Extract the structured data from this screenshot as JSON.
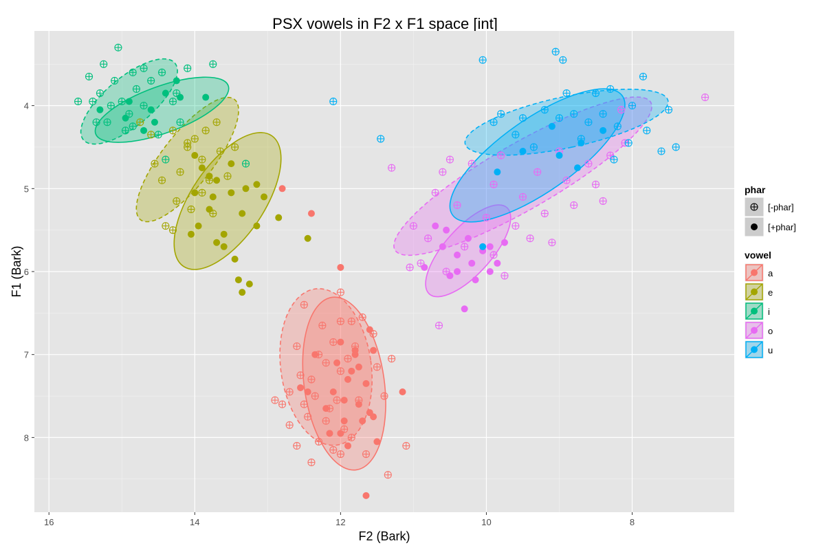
{
  "chart_data": {
    "type": "scatter",
    "title": "PSX vowels in F2 x F1 space [int]",
    "xlabel": "F2 (Bark)",
    "ylabel": "F1 (Bark)",
    "xlim": [
      16.2,
      6.6
    ],
    "ylim": [
      3.1,
      8.9
    ],
    "x_reversed": true,
    "y_reversed": true,
    "x_ticks": [
      "16",
      "14",
      "12",
      "10",
      "8"
    ],
    "y_ticks": [
      "4",
      "5",
      "6",
      "7",
      "8"
    ],
    "grid": true,
    "legend_position": "right",
    "legends": [
      {
        "title": "phar",
        "entries": [
          {
            "label": "[-phar]",
            "shape": "crossed-circle"
          },
          {
            "label": "[+phar]",
            "shape": "filled-circle"
          }
        ]
      },
      {
        "title": "vowel",
        "entries": [
          {
            "label": "a",
            "color": "#F8766D"
          },
          {
            "label": "e",
            "color": "#A3A500"
          },
          {
            "label": "i",
            "color": "#00BF7D"
          },
          {
            "label": "o",
            "color": "#E76BF3"
          },
          {
            "label": "u",
            "color": "#00B0F6"
          }
        ]
      }
    ],
    "ellipses": [
      {
        "vowel": "a",
        "phar": "[-phar]",
        "cx": 12.2,
        "cy": 7.15,
        "rx": 0.62,
        "ry": 0.95,
        "angle": -8
      },
      {
        "vowel": "a",
        "phar": "[+phar]",
        "cx": 11.95,
        "cy": 7.35,
        "rx": 0.55,
        "ry": 1.05,
        "angle": -8
      },
      {
        "vowel": "e",
        "phar": "[-phar]",
        "cx": 14.1,
        "cy": 4.65,
        "rx": 0.35,
        "ry": 0.92,
        "angle": 38
      },
      {
        "vowel": "e",
        "phar": "[+phar]",
        "cx": 13.55,
        "cy": 5.15,
        "rx": 0.5,
        "ry": 0.95,
        "angle": 34
      },
      {
        "vowel": "i",
        "phar": "[-phar]",
        "cx": 14.9,
        "cy": 3.95,
        "rx": 0.33,
        "ry": 0.72,
        "angle": 50
      },
      {
        "vowel": "i",
        "phar": "[+phar]",
        "cx": 14.45,
        "cy": 4.05,
        "rx": 0.32,
        "ry": 0.85,
        "angle": 70
      },
      {
        "vowel": "o",
        "phar": "[-phar]",
        "cx": 9.5,
        "cy": 4.85,
        "rx": 0.45,
        "ry": 1.78,
        "angle": 60
      },
      {
        "vowel": "o",
        "phar": "[+phar]",
        "cx": 10.25,
        "cy": 5.75,
        "rx": 0.32,
        "ry": 0.7,
        "angle": 42
      },
      {
        "vowel": "u",
        "phar": "[-phar]",
        "cx": 8.9,
        "cy": 4.2,
        "rx": 0.35,
        "ry": 1.25,
        "angle": 78
      },
      {
        "vowel": "u",
        "phar": "[+phar]",
        "cx": 9.3,
        "cy": 4.6,
        "rx": 0.5,
        "ry": 1.25,
        "angle": 55
      }
    ],
    "series": [
      {
        "vowel": "a",
        "phar": "[-phar]",
        "points": [
          [
            12.1,
            6.85
          ],
          [
            12.3,
            7.0
          ],
          [
            12.4,
            7.3
          ],
          [
            12.5,
            7.6
          ],
          [
            12.2,
            7.8
          ],
          [
            12.0,
            6.6
          ],
          [
            11.8,
            6.9
          ],
          [
            12.6,
            6.9
          ],
          [
            12.0,
            7.2
          ],
          [
            12.35,
            7.5
          ],
          [
            12.15,
            7.65
          ],
          [
            12.45,
            7.75
          ],
          [
            12.3,
            8.05
          ],
          [
            12.1,
            8.15
          ],
          [
            11.9,
            7.05
          ],
          [
            12.55,
            7.25
          ],
          [
            12.7,
            7.45
          ],
          [
            12.25,
            6.65
          ],
          [
            12.05,
            7.55
          ],
          [
            11.75,
            7.55
          ],
          [
            11.85,
            8.0
          ],
          [
            12.8,
            7.6
          ],
          [
            11.5,
            7.15
          ],
          [
            11.4,
            7.5
          ],
          [
            12.6,
            8.1
          ],
          [
            12.0,
            8.2
          ],
          [
            11.7,
            6.55
          ],
          [
            12.5,
            6.4
          ],
          [
            11.65,
            8.2
          ],
          [
            11.35,
            8.45
          ],
          [
            12.4,
            8.3
          ],
          [
            12.0,
            6.25
          ],
          [
            11.3,
            7.05
          ],
          [
            11.85,
            6.6
          ],
          [
            11.1,
            8.1
          ],
          [
            12.9,
            7.55
          ],
          [
            12.2,
            7.1
          ],
          [
            11.95,
            7.9
          ],
          [
            12.7,
            7.85
          ],
          [
            11.55,
            6.75
          ]
        ]
      },
      {
        "vowel": "a",
        "phar": "[+phar]",
        "points": [
          [
            12.0,
            6.85
          ],
          [
            11.8,
            7.0
          ],
          [
            11.9,
            7.3
          ],
          [
            12.1,
            7.45
          ],
          [
            11.75,
            7.6
          ],
          [
            11.6,
            7.7
          ],
          [
            11.95,
            7.8
          ],
          [
            12.05,
            7.1
          ],
          [
            11.65,
            7.35
          ],
          [
            11.85,
            7.2
          ],
          [
            12.2,
            7.65
          ],
          [
            12.45,
            7.45
          ],
          [
            11.7,
            7.8
          ],
          [
            11.55,
            6.95
          ],
          [
            11.9,
            8.1
          ],
          [
            11.5,
            8.05
          ],
          [
            12.15,
            7.95
          ],
          [
            11.6,
            6.7
          ],
          [
            11.15,
            7.45
          ],
          [
            11.8,
            6.95
          ],
          [
            12.55,
            7.4
          ],
          [
            11.95,
            7.55
          ],
          [
            11.65,
            8.7
          ],
          [
            12.0,
            7.95
          ],
          [
            12.35,
            7.0
          ],
          [
            11.75,
            7.15
          ],
          [
            11.55,
            7.75
          ],
          [
            12.8,
            5.0
          ],
          [
            12.4,
            5.3
          ],
          [
            12.0,
            5.95
          ]
        ]
      },
      {
        "vowel": "e",
        "phar": "[-phar]",
        "points": [
          [
            14.3,
            4.3
          ],
          [
            14.1,
            4.5
          ],
          [
            14.0,
            4.4
          ],
          [
            13.9,
            4.65
          ],
          [
            13.8,
            4.9
          ],
          [
            13.65,
            4.55
          ],
          [
            14.2,
            4.8
          ],
          [
            14.45,
            4.9
          ],
          [
            13.55,
            4.85
          ],
          [
            13.9,
            5.05
          ],
          [
            14.25,
            5.15
          ],
          [
            14.05,
            5.25
          ],
          [
            13.75,
            5.3
          ],
          [
            14.4,
            5.45
          ],
          [
            14.6,
            4.35
          ],
          [
            14.75,
            4.2
          ],
          [
            13.7,
            4.2
          ],
          [
            13.45,
            4.5
          ],
          [
            14.3,
            5.5
          ],
          [
            13.85,
            4.3
          ],
          [
            14.55,
            4.7
          ],
          [
            14.1,
            4.45
          ]
        ]
      },
      {
        "vowel": "e",
        "phar": "[+phar]",
        "points": [
          [
            13.9,
            4.75
          ],
          [
            13.7,
            4.9
          ],
          [
            13.5,
            5.05
          ],
          [
            13.8,
            5.25
          ],
          [
            13.95,
            5.45
          ],
          [
            13.6,
            5.55
          ],
          [
            13.35,
            5.3
          ],
          [
            14.0,
            4.6
          ],
          [
            13.3,
            5.0
          ],
          [
            13.7,
            5.65
          ],
          [
            13.45,
            5.85
          ],
          [
            13.15,
            5.45
          ],
          [
            13.05,
            5.1
          ],
          [
            13.6,
            5.7
          ],
          [
            13.25,
            6.15
          ],
          [
            13.4,
            6.1
          ],
          [
            12.85,
            5.35
          ],
          [
            12.45,
            5.6
          ],
          [
            13.75,
            5.1
          ],
          [
            14.0,
            5.05
          ],
          [
            13.15,
            4.95
          ],
          [
            13.5,
            4.7
          ],
          [
            13.8,
            4.85
          ],
          [
            13.35,
            6.25
          ],
          [
            14.05,
            5.55
          ]
        ]
      },
      {
        "vowel": "i",
        "phar": "[-phar]",
        "points": [
          [
            15.3,
            3.85
          ],
          [
            15.1,
            3.7
          ],
          [
            15.0,
            3.95
          ],
          [
            14.9,
            4.1
          ],
          [
            14.8,
            3.8
          ],
          [
            15.2,
            4.2
          ],
          [
            14.7,
            4.0
          ],
          [
            14.6,
            3.7
          ],
          [
            15.4,
            3.95
          ],
          [
            14.85,
            3.6
          ],
          [
            15.05,
            3.3
          ],
          [
            14.5,
            4.35
          ],
          [
            14.3,
            3.95
          ],
          [
            14.1,
            3.55
          ],
          [
            15.6,
            3.95
          ],
          [
            15.45,
            3.65
          ],
          [
            14.95,
            4.3
          ],
          [
            14.4,
            4.65
          ],
          [
            13.75,
            3.5
          ],
          [
            13.3,
            4.7
          ],
          [
            14.7,
            3.55
          ],
          [
            15.25,
            3.5
          ],
          [
            14.2,
            4.2
          ],
          [
            15.15,
            4.0
          ],
          [
            14.45,
            3.6
          ],
          [
            14.85,
            4.25
          ],
          [
            15.35,
            4.2
          ],
          [
            14.25,
            3.85
          ]
        ]
      },
      {
        "vowel": "i",
        "phar": "[+phar]",
        "points": [
          [
            14.9,
            3.95
          ],
          [
            14.6,
            4.05
          ],
          [
            14.4,
            3.85
          ],
          [
            14.2,
            3.9
          ],
          [
            14.7,
            4.3
          ],
          [
            14.95,
            4.15
          ],
          [
            14.25,
            3.7
          ],
          [
            13.85,
            3.9
          ],
          [
            15.3,
            4.05
          ],
          [
            14.55,
            4.2
          ]
        ]
      },
      {
        "vowel": "o",
        "phar": "[-phar]",
        "points": [
          [
            10.6,
            4.8
          ],
          [
            10.2,
            4.7
          ],
          [
            9.9,
            4.95
          ],
          [
            9.5,
            5.1
          ],
          [
            9.3,
            4.8
          ],
          [
            9.0,
            4.55
          ],
          [
            8.6,
            4.7
          ],
          [
            8.5,
            4.95
          ],
          [
            8.3,
            4.6
          ],
          [
            10.4,
            5.2
          ],
          [
            10.0,
            5.35
          ],
          [
            9.6,
            5.45
          ],
          [
            9.2,
            5.3
          ],
          [
            8.8,
            5.2
          ],
          [
            8.4,
            5.15
          ],
          [
            8.1,
            4.45
          ],
          [
            10.8,
            5.6
          ],
          [
            10.3,
            5.7
          ],
          [
            9.9,
            5.8
          ],
          [
            9.4,
            5.6
          ],
          [
            10.9,
            5.9
          ],
          [
            11.05,
            5.95
          ],
          [
            10.55,
            6.0
          ],
          [
            9.75,
            6.05
          ],
          [
            9.1,
            5.65
          ],
          [
            10.7,
            5.05
          ],
          [
            11.0,
            5.45
          ],
          [
            7.0,
            3.9
          ],
          [
            8.15,
            4.05
          ],
          [
            10.5,
            4.65
          ],
          [
            9.8,
            4.6
          ],
          [
            8.9,
            4.9
          ],
          [
            10.65,
            6.65
          ],
          [
            11.3,
            4.75
          ]
        ]
      },
      {
        "vowel": "o",
        "phar": "[+phar]",
        "points": [
          [
            10.4,
            5.8
          ],
          [
            10.2,
            5.9
          ],
          [
            10.05,
            5.75
          ],
          [
            9.85,
            5.9
          ],
          [
            10.6,
            5.7
          ],
          [
            10.5,
            6.05
          ],
          [
            10.15,
            6.1
          ],
          [
            9.95,
            6.0
          ],
          [
            10.7,
            5.45
          ],
          [
            10.55,
            5.5
          ],
          [
            10.3,
            6.45
          ],
          [
            10.25,
            5.6
          ],
          [
            9.75,
            5.65
          ],
          [
            10.85,
            5.95
          ],
          [
            9.95,
            5.7
          ],
          [
            10.4,
            6.0
          ]
        ]
      },
      {
        "vowel": "u",
        "phar": "[-phar]",
        "points": [
          [
            9.2,
            4.05
          ],
          [
            9.0,
            4.15
          ],
          [
            8.8,
            4.1
          ],
          [
            8.6,
            4.2
          ],
          [
            8.4,
            4.1
          ],
          [
            8.2,
            4.25
          ],
          [
            8.0,
            4.0
          ],
          [
            7.8,
            4.3
          ],
          [
            9.6,
            4.35
          ],
          [
            9.8,
            4.1
          ],
          [
            8.9,
            3.85
          ],
          [
            8.5,
            3.85
          ],
          [
            8.3,
            3.8
          ],
          [
            7.5,
            4.05
          ],
          [
            7.4,
            4.5
          ],
          [
            7.85,
            3.65
          ],
          [
            9.05,
            3.35
          ],
          [
            8.95,
            3.45
          ],
          [
            10.05,
            3.45
          ],
          [
            11.45,
            4.4
          ],
          [
            12.1,
            3.95
          ],
          [
            9.35,
            4.5
          ],
          [
            8.7,
            4.4
          ],
          [
            8.05,
            4.45
          ],
          [
            9.5,
            4.15
          ],
          [
            7.6,
            4.55
          ],
          [
            8.25,
            4.65
          ],
          [
            9.9,
            4.2
          ]
        ]
      },
      {
        "vowel": "u",
        "phar": "[+phar]",
        "points": [
          [
            9.1,
            4.25
          ],
          [
            8.7,
            4.45
          ],
          [
            8.4,
            4.3
          ],
          [
            9.5,
            4.55
          ],
          [
            9.85,
            4.8
          ],
          [
            8.75,
            4.75
          ],
          [
            10.05,
            5.7
          ],
          [
            9.0,
            4.6
          ]
        ]
      }
    ]
  }
}
